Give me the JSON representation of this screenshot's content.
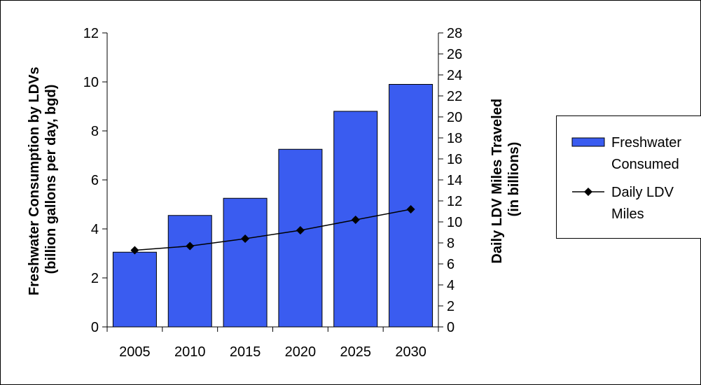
{
  "chart_data": {
    "type": "bar",
    "title": "",
    "categories": [
      "2005",
      "2010",
      "2015",
      "2020",
      "2025",
      "2030"
    ],
    "y_left": {
      "label_line1": "Freshwater Consumption by LDVs",
      "label_line2": "(billion gallons per day, bgd)",
      "range": [
        0,
        12
      ],
      "ticks": [
        "0",
        "2",
        "4",
        "6",
        "8",
        "10",
        "12"
      ]
    },
    "y_right": {
      "label_line1": "Daily LDV Miles Traveled",
      "label_line2": "(in billions)",
      "range": [
        0,
        28
      ],
      "ticks": [
        "0",
        "2",
        "4",
        "6",
        "8",
        "10",
        "12",
        "14",
        "16",
        "18",
        "20",
        "22",
        "24",
        "26",
        "28"
      ]
    },
    "series": [
      {
        "name_line1": "Freshwater",
        "name_line2": "Consumed",
        "type": "bar",
        "axis": "left",
        "values": [
          3.05,
          4.55,
          5.25,
          7.25,
          8.8,
          9.9
        ]
      },
      {
        "name_line1": "Daily LDV",
        "name_line2": "Miles",
        "type": "line",
        "marker": "diamond",
        "axis": "right",
        "values": [
          7.3,
          7.7,
          8.4,
          9.2,
          10.2,
          11.2
        ]
      }
    ],
    "legend_placement": "right",
    "grid": false,
    "colors": {
      "bar_fill": "#3a5cf0",
      "bar_stroke": "#000000",
      "line": "#000000",
      "marker": "#000000"
    }
  }
}
